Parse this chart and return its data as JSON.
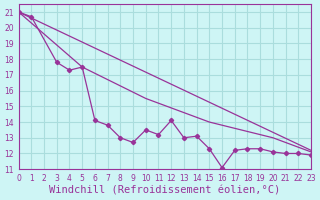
{
  "background_color": "#cef5f5",
  "line_color": "#993399",
  "grid_color": "#aadddd",
  "xlabel": "Windchill (Refroidissement éolien,°C)",
  "xlabel_color": "#993399",
  "xlabel_fontsize": 7.5,
  "xtick_fontsize": 5.5,
  "ytick_fontsize": 5.5,
  "xlim": [
    0,
    23
  ],
  "ylim": [
    11,
    21.5
  ],
  "yticks": [
    11,
    12,
    13,
    14,
    15,
    16,
    17,
    18,
    19,
    20,
    21
  ],
  "xticks": [
    0,
    1,
    2,
    3,
    4,
    5,
    6,
    7,
    8,
    9,
    10,
    11,
    12,
    13,
    14,
    15,
    16,
    17,
    18,
    19,
    20,
    21,
    22,
    23
  ],
  "line1_x": [
    0,
    1,
    3,
    4,
    5,
    6,
    7,
    8,
    9,
    10,
    11,
    12,
    13,
    14,
    15,
    16,
    17,
    18,
    19,
    20,
    21,
    22,
    23
  ],
  "line1_y": [
    21,
    20.7,
    17.8,
    17.3,
    17.5,
    14.1,
    13.8,
    13.0,
    12.7,
    13.5,
    13.2,
    14.1,
    13.0,
    13.1,
    12.3,
    11.1,
    12.2,
    12.3,
    12.3,
    12.1,
    12.0,
    12.0,
    11.9
  ],
  "line2_x": [
    0,
    23
  ],
  "line2_y": [
    21,
    12.2
  ],
  "line3_x": [
    0,
    5,
    10,
    15,
    20,
    23
  ],
  "line3_y": [
    21,
    17.5,
    15.5,
    14.0,
    13.0,
    12.1
  ]
}
